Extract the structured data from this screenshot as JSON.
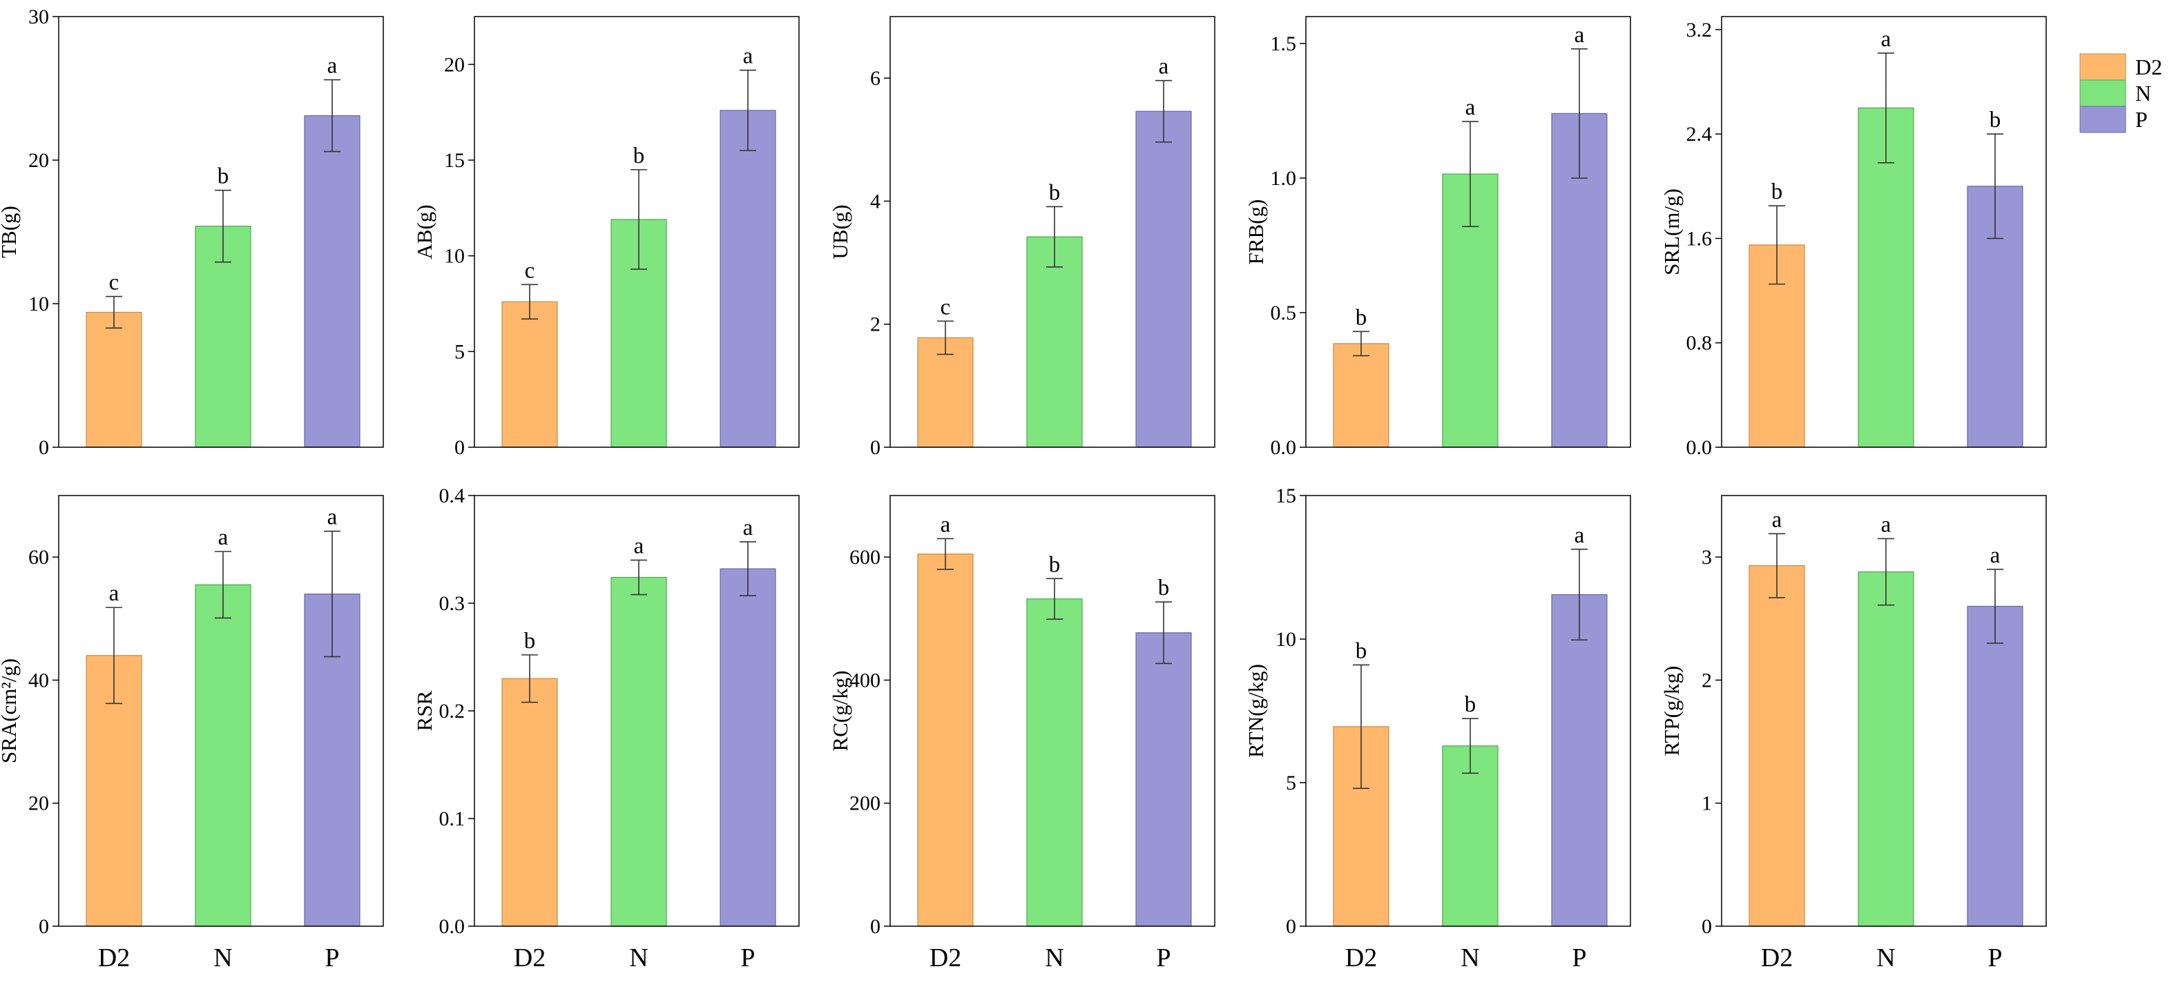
{
  "figure": {
    "categories": [
      "D2",
      "N",
      "P"
    ],
    "legend": {
      "placement": "top-right",
      "items": [
        {
          "label": "D2",
          "color": "#FFB86B"
        },
        {
          "label": "N",
          "color": "#7FE57F"
        },
        {
          "label": "P",
          "color": "#9896D4"
        }
      ]
    }
  },
  "chart_data": [
    {
      "type": "bar",
      "ylabel": "TB(g)",
      "ylim": [
        0,
        30
      ],
      "yticks": [
        "0",
        "10",
        "20",
        "30"
      ],
      "categories": [
        "D2",
        "N",
        "P"
      ],
      "values": [
        9.4,
        15.4,
        23.1
      ],
      "errors": [
        1.1,
        2.5,
        2.5
      ],
      "sig": [
        "c",
        "b",
        "a"
      ]
    },
    {
      "type": "bar",
      "ylabel": "AB(g)",
      "ylim": [
        0,
        22.5
      ],
      "yticks": [
        "0",
        "5",
        "10",
        "15",
        "20"
      ],
      "categories": [
        "D2",
        "N",
        "P"
      ],
      "values": [
        7.6,
        11.9,
        17.6
      ],
      "errors": [
        0.9,
        2.6,
        2.1
      ],
      "sig": [
        "c",
        "b",
        "a"
      ]
    },
    {
      "type": "bar",
      "ylabel": "UB(g)",
      "ylim": [
        0,
        7
      ],
      "yticks": [
        "0",
        "2",
        "4",
        "6"
      ],
      "categories": [
        "D2",
        "N",
        "P"
      ],
      "values": [
        1.78,
        3.42,
        5.46
      ],
      "errors": [
        0.27,
        0.49,
        0.5
      ],
      "sig": [
        "c",
        "b",
        "a"
      ]
    },
    {
      "type": "bar",
      "ylabel": "FRB(g)",
      "ylim": [
        0,
        1.6
      ],
      "yticks": [
        "0.0",
        "0.5",
        "1.0",
        "1.5"
      ],
      "categories": [
        "D2",
        "N",
        "P"
      ],
      "values": [
        0.385,
        1.015,
        1.24
      ],
      "errors": [
        0.045,
        0.195,
        0.24
      ],
      "sig": [
        "b",
        "a",
        "a"
      ]
    },
    {
      "type": "bar",
      "ylabel": "SRL(m/g)",
      "ylim": [
        0,
        3.3
      ],
      "yticks": [
        "0.0",
        "0.8",
        "1.6",
        "2.4",
        "3.2"
      ],
      "categories": [
        "D2",
        "N",
        "P"
      ],
      "values": [
        1.55,
        2.6,
        2.0
      ],
      "errors": [
        0.3,
        0.42,
        0.4
      ],
      "sig": [
        "b",
        "a",
        "b"
      ]
    },
    {
      "type": "bar",
      "ylabel": "SRA(cm²/g)",
      "ylim": [
        0,
        70
      ],
      "yticks": [
        "0",
        "20",
        "40",
        "60"
      ],
      "categories": [
        "D2",
        "N",
        "P"
      ],
      "values": [
        44,
        55.5,
        54
      ],
      "errors": [
        7.8,
        5.4,
        10.2
      ],
      "sig": [
        "a",
        "a",
        "a"
      ]
    },
    {
      "type": "bar",
      "ylabel": "RSR",
      "ylim": [
        0,
        0.4
      ],
      "yticks": [
        "0.0",
        "0.1",
        "0.2",
        "0.3",
        "0.4"
      ],
      "categories": [
        "D2",
        "N",
        "P"
      ],
      "values": [
        0.23,
        0.324,
        0.332
      ],
      "errors": [
        0.022,
        0.016,
        0.025
      ],
      "sig": [
        "b",
        "a",
        "a"
      ]
    },
    {
      "type": "bar",
      "ylabel": "RC(g/kg)",
      "ylim": [
        0,
        700
      ],
      "yticks": [
        "0",
        "200",
        "400",
        "600"
      ],
      "categories": [
        "D2",
        "N",
        "P"
      ],
      "values": [
        605,
        532,
        477
      ],
      "errors": [
        25,
        33,
        50
      ],
      "sig": [
        "a",
        "b",
        "b"
      ]
    },
    {
      "type": "bar",
      "ylabel": "RTN(g/kg)",
      "ylim": [
        0,
        15
      ],
      "yticks": [
        "0",
        "5",
        "10",
        "15"
      ],
      "categories": [
        "D2",
        "N",
        "P"
      ],
      "values": [
        6.95,
        6.28,
        11.55
      ],
      "errors": [
        2.15,
        0.95,
        1.58
      ],
      "sig": [
        "b",
        "b",
        "a"
      ]
    },
    {
      "type": "bar",
      "ylabel": "RTP(g/kg)",
      "ylim": [
        0,
        3.5
      ],
      "yticks": [
        "0",
        "1",
        "2",
        "3"
      ],
      "categories": [
        "D2",
        "N",
        "P"
      ],
      "values": [
        2.93,
        2.88,
        2.6
      ],
      "errors": [
        0.26,
        0.27,
        0.3
      ],
      "sig": [
        "a",
        "a",
        "a"
      ]
    }
  ]
}
